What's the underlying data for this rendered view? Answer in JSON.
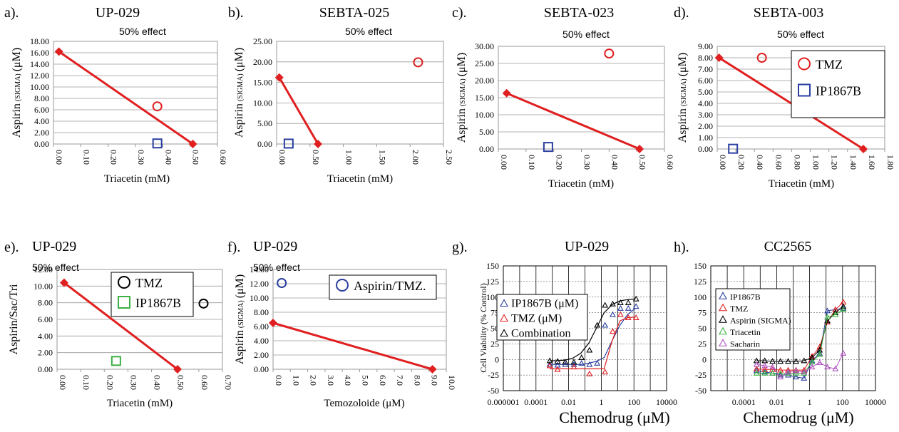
{
  "colors": {
    "red": "#e02020",
    "blue": "#2a3f9f",
    "black": "#000000",
    "green": "#3cb043",
    "purple": "#b055c0",
    "grid": "#9a9a9a"
  },
  "chart_data": [
    {
      "panel": "a).",
      "title": "UP-029",
      "subtitle": "50% effect",
      "type": "scatter",
      "xlabel": "Triacetin (mM)",
      "ylabel": "Aspirin",
      "ylabel_sub": "(SIGMA)",
      "ylabel_unit": "(μM)",
      "xticks": [
        "0.00",
        "0.10",
        "0.20",
        "0.30",
        "0.40",
        "0.50",
        "0.60"
      ],
      "xlim": [
        0,
        0.6
      ],
      "yticks": [
        "0.00",
        "2.00",
        "4.00",
        "6.00",
        "8.00",
        "10.00",
        "12.00",
        "14.00",
        "16.00",
        "18.00"
      ],
      "ylim": [
        0,
        18
      ],
      "line": {
        "x": [
          0.02,
          0.51
        ],
        "y": [
          16.2,
          0
        ]
      },
      "points": [
        {
          "marker": "circle",
          "color": "red",
          "x": 0.38,
          "y": 6.6
        },
        {
          "marker": "square",
          "color": "blue",
          "x": 0.38,
          "y": 0.1
        }
      ],
      "legend": []
    },
    {
      "panel": "b).",
      "title": "SEBTA-025",
      "subtitle": "50% effect",
      "type": "scatter",
      "xlabel": "Triacetin (mM)",
      "ylabel": "Aspirin",
      "ylabel_sub": "(SIGMA)",
      "ylabel_unit": "(μM)",
      "xticks": [
        "0.00",
        "0.50",
        "1.00",
        "1.50",
        "2.00",
        "2.50"
      ],
      "xlim": [
        0,
        2.5
      ],
      "yticks": [
        "0.00",
        "5.00",
        "10.00",
        "15.00",
        "20.00",
        "25.00"
      ],
      "ylim": [
        0,
        25
      ],
      "line": {
        "x": [
          0.04,
          0.62
        ],
        "y": [
          16.2,
          0
        ]
      },
      "points": [
        {
          "marker": "circle",
          "color": "red",
          "x": 2.12,
          "y": 19.9
        },
        {
          "marker": "square",
          "color": "blue",
          "x": 0.18,
          "y": 0.1
        }
      ],
      "legend": []
    },
    {
      "panel": "c).",
      "title": "SEBTA-023",
      "subtitle": "50% effect",
      "type": "scatter",
      "xlabel": "Triacetin (mM)",
      "ylabel": "Aspirin",
      "ylabel_sub": "(SIGMA)",
      "ylabel_unit": "(μM)",
      "xticks": [
        "0.00",
        "0.10",
        "0.20",
        "0.30",
        "0.40",
        "0.50",
        "0.60"
      ],
      "xlim": [
        0,
        0.6
      ],
      "yticks": [
        "0.00",
        "5.00",
        "10.00",
        "15.00",
        "20.00",
        "25.00",
        "30.00"
      ],
      "ylim": [
        0,
        30
      ],
      "line": {
        "x": [
          0.03,
          0.51
        ],
        "y": [
          16.3,
          0
        ]
      },
      "points": [
        {
          "marker": "circle",
          "color": "red",
          "x": 0.4,
          "y": 27.9
        },
        {
          "marker": "square",
          "color": "blue",
          "x": 0.18,
          "y": 0.6
        }
      ],
      "legend": []
    },
    {
      "panel": "d).",
      "title": "SEBTA-003",
      "subtitle": "50% effect",
      "type": "scatter",
      "xlabel": "Triacetin (mM)",
      "ylabel": "Aspirin",
      "ylabel_sub": "(SIGMA)",
      "ylabel_unit": "(μM)",
      "xticks": [
        "0.00",
        "0.20",
        "0.40",
        "0.60",
        "0.80",
        "1.00",
        "1.20",
        "1.40",
        "1.60",
        "1.80"
      ],
      "xlim": [
        0,
        1.8
      ],
      "yticks": [
        "0.00",
        "1.00",
        "2.00",
        "3.00",
        "4.00",
        "5.00",
        "6.00",
        "7.00",
        "8.00",
        "9.00"
      ],
      "ylim": [
        0,
        9
      ],
      "line": {
        "x": [
          0.02,
          1.57
        ],
        "y": [
          8.0,
          0
        ]
      },
      "points": [
        {
          "marker": "circle",
          "color": "red",
          "x": 0.48,
          "y": 8.0
        },
        {
          "marker": "square",
          "color": "blue",
          "x": 0.17,
          "y": 0.02
        }
      ],
      "legend": [
        {
          "label": "TMZ",
          "marker": "circle",
          "color": "red"
        },
        {
          "label": "IP1867B",
          "marker": "square",
          "color": "blue"
        }
      ]
    },
    {
      "panel": "e).",
      "title": "UP-029",
      "subtitle": "50% effect",
      "type": "scatter",
      "xlabel": "Triacetin (mM)",
      "ylabel": "Aspirin/Sac/Tri",
      "ylabel_sub": "",
      "ylabel_unit": "",
      "xticks": [
        "0.00",
        "0.10",
        "0.20",
        "0.30",
        "0.40",
        "0.50",
        "0.60",
        "0.70"
      ],
      "xlim": [
        0,
        0.7
      ],
      "yticks": [
        "0.00",
        "2.00",
        "4.00",
        "6.00",
        "8.00",
        "10.00",
        "12.00"
      ],
      "ylim": [
        0,
        12
      ],
      "line": {
        "x": [
          0.03,
          0.51
        ],
        "y": [
          10.4,
          0
        ]
      },
      "points": [
        {
          "marker": "circle",
          "color": "black",
          "x": 0.62,
          "y": 7.9
        },
        {
          "marker": "square",
          "color": "green",
          "x": 0.25,
          "y": 1.0
        }
      ],
      "legend": [
        {
          "label": "TMZ",
          "marker": "circle",
          "color": "black"
        },
        {
          "label": "IP1867B",
          "marker": "square",
          "color": "green"
        }
      ]
    },
    {
      "panel": "f).",
      "title": "UP-029",
      "subtitle": "50% effect",
      "type": "scatter",
      "xlabel": "Temozoloide (μM)",
      "ylabel": "Aspirin",
      "ylabel_sub": "(SIGMA)",
      "ylabel_unit": "(μM)",
      "xticks": [
        "0.0",
        "1.0",
        "2.0",
        "3.0",
        "4.0",
        "5.0",
        "6.0",
        "7.0",
        "8.0",
        "9.0",
        "10.0"
      ],
      "xlim": [
        0,
        10
      ],
      "yticks": [
        "0.00",
        "2.00",
        "4.00",
        "6.00",
        "8.00",
        "10.00",
        "12.00",
        "14.00"
      ],
      "ylim": [
        0,
        14
      ],
      "line": {
        "x": [
          0.0,
          9.2
        ],
        "y": [
          6.5,
          0
        ]
      },
      "points": [
        {
          "marker": "circle",
          "color": "blue",
          "x": 0.5,
          "y": 12.1
        }
      ],
      "legend": [
        {
          "label": "Aspirin/TMZ.",
          "marker": "circle",
          "color": "blue"
        }
      ]
    },
    {
      "panel": "g).",
      "title": "UP-029",
      "type": "line",
      "xlabel": "Chemodrug (μM)",
      "ylabel": "Cell Viability (% Control)",
      "xticks": [
        "0.000001",
        "0.0001",
        "0.01",
        "1",
        "100",
        "10000"
      ],
      "xlim": [
        1e-06,
        10000
      ],
      "xscale": "log",
      "yticks": [
        "-50",
        "-25",
        "0",
        "25",
        "50",
        "75",
        "100",
        "125",
        "150"
      ],
      "ylim": [
        -50,
        150
      ],
      "series": [
        {
          "name": "IP1867B (μM)",
          "color": "blue",
          "x": [
            0.0007,
            0.0021,
            0.0062,
            0.018,
            0.055,
            0.17,
            0.5,
            1.5,
            4.6,
            14,
            41,
            123
          ],
          "y": [
            -8,
            -8,
            -8,
            -8,
            -8,
            -6,
            -3,
            3,
            30,
            55,
            72,
            82
          ],
          "points_x": [
            0.0007,
            0.0021,
            0.0062,
            0.021,
            0.062,
            0.19,
            0.56,
            1.7,
            5,
            15,
            45,
            135
          ],
          "points_y": [
            -8,
            -9,
            -8,
            -8,
            -6,
            -8,
            -6,
            55,
            72,
            82,
            82,
            85
          ]
        },
        {
          "name": "TMZ (μM)",
          "color": "red",
          "x": [
            0.0007,
            0.0021,
            0.0062,
            0.018,
            0.055,
            0.17,
            0.5,
            1.5,
            4.6,
            14,
            41,
            123
          ],
          "y": [
            -15,
            -15,
            -15,
            -15,
            -15,
            -15,
            -15,
            -15,
            30,
            62,
            67,
            68
          ],
          "points_x": [
            0.0007,
            0.0021,
            0.021,
            0.19,
            1.7,
            5,
            15,
            45,
            135
          ],
          "points_y": [
            -10,
            -16,
            -12,
            -23,
            -20,
            45,
            72,
            67,
            67
          ]
        },
        {
          "name": "Combination",
          "color": "black",
          "x": [
            0.0007,
            0.0021,
            0.0062,
            0.018,
            0.055,
            0.17,
            0.5,
            1.5,
            4.6,
            14,
            41,
            123
          ],
          "y": [
            -2,
            -2,
            -1,
            2,
            10,
            26,
            50,
            75,
            88,
            94,
            96,
            97
          ],
          "points_x": [
            0.0007,
            0.0021,
            0.0062,
            0.021,
            0.062,
            0.19,
            0.56,
            1.7,
            5,
            15,
            45,
            135
          ],
          "points_y": [
            -2,
            -3,
            -4,
            -4,
            3,
            15,
            55,
            87,
            89,
            91,
            91,
            97
          ]
        }
      ],
      "legend": [
        {
          "label": "IP1867B (μM)",
          "color": "blue"
        },
        {
          "label": "TMZ (μM)",
          "color": "red"
        },
        {
          "label": "Combination",
          "color": "black"
        }
      ]
    },
    {
      "panel": "h).",
      "title": "CC2565",
      "type": "line",
      "xlabel": "Chemodrug (μM)",
      "ylabel": "",
      "xticks": [
        "0.0001",
        "0.01",
        "1",
        "100",
        "10000"
      ],
      "xlim": [
        1e-06,
        10000
      ],
      "xscale": "log",
      "yticks": [
        "-50",
        "-25",
        "0",
        "25",
        "50",
        "75",
        "100",
        "125",
        "150"
      ],
      "ylim": [
        -50,
        150
      ],
      "series": [
        {
          "name": "IP1867B",
          "color": "blue",
          "points_x": [
            0.0006,
            0.0019,
            0.0056,
            0.017,
            0.05,
            0.15,
            0.46,
            1.4,
            4.1,
            12,
            37,
            111
          ],
          "points_y": [
            -18,
            -20,
            -22,
            -25,
            -25,
            -28,
            -30,
            -2,
            10,
            78,
            80,
            82
          ]
        },
        {
          "name": "TMZ",
          "color": "red",
          "points_x": [
            0.0006,
            0.0019,
            0.0056,
            0.017,
            0.05,
            0.15,
            0.46,
            1.4,
            4.1,
            12,
            37,
            111
          ],
          "points_y": [
            -15,
            -16,
            -16,
            -17,
            -17,
            -17,
            -17,
            5,
            20,
            60,
            80,
            92
          ]
        },
        {
          "name": "Aspirin (SIGMA)",
          "color": "black",
          "points_x": [
            0.0006,
            0.0019,
            0.0056,
            0.017,
            0.05,
            0.15,
            0.46,
            1.4,
            4.1,
            12,
            37,
            111
          ],
          "points_y": [
            -2,
            -2,
            -3,
            -3,
            -3,
            -3,
            -2,
            3,
            15,
            62,
            75,
            85
          ]
        },
        {
          "name": "Triacetin",
          "color": "green",
          "points_x": [
            0.0006,
            0.0019,
            0.0056,
            0.017,
            0.05,
            0.15,
            0.46,
            1.4,
            4.1,
            12,
            37,
            111
          ],
          "points_y": [
            -22,
            -22,
            -22,
            -23,
            -22,
            -22,
            -22,
            -4,
            8,
            68,
            72,
            80
          ]
        },
        {
          "name": "Sacharin",
          "color": "purple",
          "points_x": [
            0.0006,
            0.0019,
            0.0056,
            0.017,
            0.05,
            0.15,
            0.46,
            1.4,
            4.1,
            12,
            37,
            111
          ],
          "points_y": [
            -8,
            -10,
            -12,
            -28,
            -20,
            -18,
            -20,
            -12,
            -5,
            -12,
            -15,
            10
          ]
        }
      ],
      "legend": [
        {
          "label": "IP1867B",
          "color": "blue"
        },
        {
          "label": "TMZ",
          "color": "red"
        },
        {
          "label": "Aspirin (SIGMA)",
          "color": "black"
        },
        {
          "label": "Triacetin",
          "color": "green"
        },
        {
          "label": "Sacharin",
          "color": "purple"
        }
      ]
    }
  ]
}
